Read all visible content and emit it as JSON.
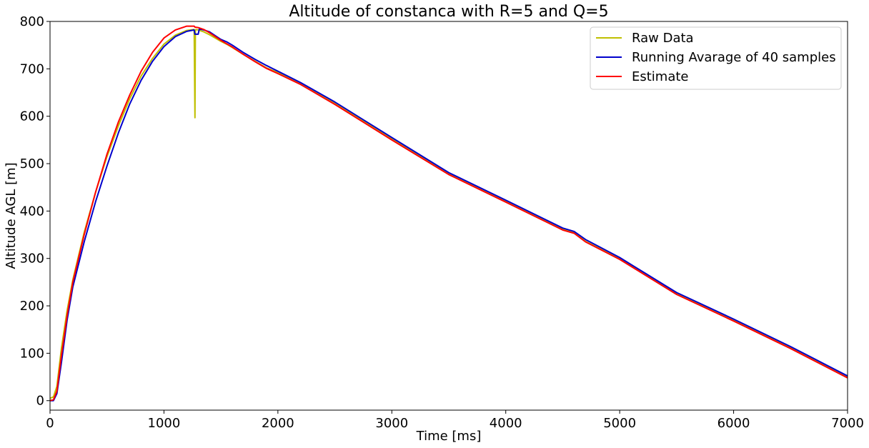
{
  "chart_data": {
    "type": "line",
    "title": "Altitude of constanca with R=5 and Q=5",
    "xlabel": "Time [ms]",
    "ylabel": "Altitude AGL [m]",
    "xlim": [
      0,
      7000
    ],
    "ylim": [
      -20,
      800
    ],
    "xticks": [
      0,
      1000,
      2000,
      3000,
      4000,
      5000,
      6000,
      7000
    ],
    "yticks": [
      0,
      100,
      200,
      300,
      400,
      500,
      600,
      700,
      800
    ],
    "grid": false,
    "legend_position": "top-right",
    "series": [
      {
        "name": "Raw Data",
        "color": "#bfbf00",
        "x": [
          0,
          30,
          60,
          100,
          150,
          200,
          300,
          400,
          500,
          600,
          700,
          800,
          900,
          1000,
          1100,
          1200,
          1265,
          1272,
          1276,
          1280,
          1300,
          1350,
          1400,
          1450,
          1500,
          1550,
          1600,
          1700,
          1800,
          1900,
          2000,
          2200,
          2500,
          3000,
          3500,
          4000,
          4500,
          4600,
          4700,
          5000,
          5500,
          6000,
          6500,
          7000
        ],
        "y": [
          5,
          8,
          30,
          110,
          190,
          255,
          355,
          440,
          515,
          580,
          637,
          685,
          722,
          752,
          771,
          781,
          783,
          597,
          780,
          783,
          782,
          778,
          772,
          765,
          758,
          752,
          745,
          730,
          716,
          702,
          692,
          668,
          627,
          553,
          479,
          421,
          362,
          355,
          336,
          300,
          226,
          170,
          112,
          50
        ]
      },
      {
        "name": "Running Avarage of 40 samples",
        "color": "#0000cc",
        "x": [
          0,
          30,
          60,
          100,
          150,
          200,
          300,
          400,
          500,
          600,
          700,
          800,
          900,
          1000,
          1100,
          1200,
          1265,
          1272,
          1300,
          1310,
          1350,
          1400,
          1450,
          1500,
          1550,
          1600,
          1700,
          1800,
          1900,
          2000,
          2200,
          2500,
          3000,
          3500,
          4000,
          4500,
          4600,
          4700,
          5000,
          5500,
          6000,
          6500,
          7000
        ],
        "y": [
          0,
          0,
          15,
          80,
          170,
          240,
          335,
          420,
          495,
          565,
          626,
          676,
          716,
          747,
          768,
          779,
          782,
          773,
          773,
          784,
          782,
          778,
          770,
          762,
          757,
          750,
          734,
          720,
          707,
          695,
          671,
          630,
          555,
          481,
          423,
          364,
          357,
          340,
          302,
          228,
          172,
          114,
          52
        ]
      },
      {
        "name": "Estimate",
        "color": "#ff0000",
        "x": [
          0,
          30,
          60,
          100,
          150,
          200,
          300,
          400,
          500,
          600,
          700,
          800,
          900,
          1000,
          1100,
          1200,
          1265,
          1272,
          1300,
          1350,
          1400,
          1450,
          1500,
          1550,
          1600,
          1700,
          1800,
          1900,
          2000,
          2200,
          2500,
          3000,
          3500,
          4000,
          4500,
          4600,
          4700,
          5000,
          5500,
          6000,
          6500,
          7000
        ],
        "y": [
          0,
          2,
          20,
          95,
          180,
          250,
          350,
          440,
          520,
          588,
          645,
          695,
          735,
          765,
          782,
          790,
          790,
          788,
          787,
          783,
          776,
          768,
          760,
          753,
          746,
          730,
          715,
          701,
          690,
          667,
          625,
          550,
          477,
          419,
          360,
          353,
          335,
          298,
          224,
          168,
          110,
          48
        ]
      }
    ]
  }
}
